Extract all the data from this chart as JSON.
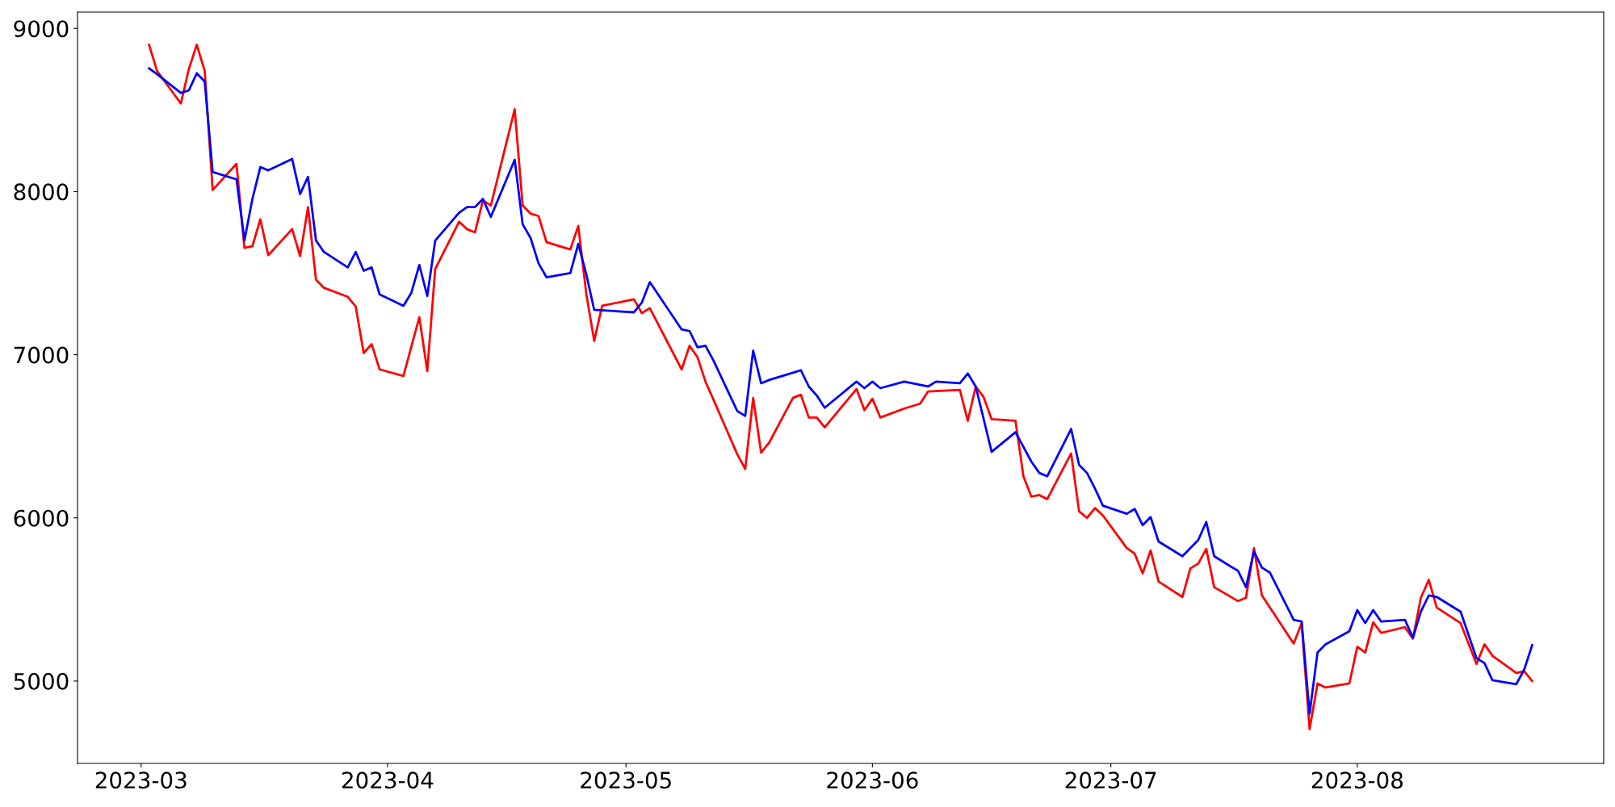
{
  "chart_data": {
    "type": "line",
    "xlim": [
      "2023-02-21",
      "2023-09-01"
    ],
    "ylim": [
      4495,
      9100
    ],
    "xticks": [
      {
        "value": "2023-03-01",
        "label": "2023-03"
      },
      {
        "value": "2023-04-01",
        "label": "2023-04"
      },
      {
        "value": "2023-05-01",
        "label": "2023-05"
      },
      {
        "value": "2023-06-01",
        "label": "2023-06"
      },
      {
        "value": "2023-07-01",
        "label": "2023-07"
      },
      {
        "value": "2023-08-01",
        "label": "2023-08"
      }
    ],
    "yticks": [
      5000,
      6000,
      7000,
      8000,
      9000
    ],
    "grid": false,
    "legend": false,
    "marker": "none",
    "line_style": "solid",
    "series": [
      {
        "color": "#ff0000",
        "x": [
          "2023-03-02",
          "2023-03-03",
          "2023-03-06",
          "2023-03-07",
          "2023-03-08",
          "2023-03-09",
          "2023-03-10",
          "2023-03-13",
          "2023-03-14",
          "2023-03-15",
          "2023-03-16",
          "2023-03-17",
          "2023-03-20",
          "2023-03-21",
          "2023-03-22",
          "2023-03-23",
          "2023-03-24",
          "2023-03-27",
          "2023-03-28",
          "2023-03-29",
          "2023-03-30",
          "2023-03-31",
          "2023-04-03",
          "2023-04-05",
          "2023-04-06",
          "2023-04-07",
          "2023-04-10",
          "2023-04-11",
          "2023-04-12",
          "2023-04-13",
          "2023-04-14",
          "2023-04-17",
          "2023-04-18",
          "2023-04-19",
          "2023-04-20",
          "2023-04-21",
          "2023-04-24",
          "2023-04-25",
          "2023-04-26",
          "2023-04-27",
          "2023-04-28",
          "2023-05-02",
          "2023-05-03",
          "2023-05-04",
          "2023-05-08",
          "2023-05-09",
          "2023-05-10",
          "2023-05-11",
          "2023-05-12",
          "2023-05-15",
          "2023-05-16",
          "2023-05-17",
          "2023-05-18",
          "2023-05-19",
          "2023-05-22",
          "2023-05-23",
          "2023-05-24",
          "2023-05-25",
          "2023-05-26",
          "2023-05-30",
          "2023-05-31",
          "2023-06-01",
          "2023-06-02",
          "2023-06-05",
          "2023-06-07",
          "2023-06-08",
          "2023-06-12",
          "2023-06-13",
          "2023-06-14",
          "2023-06-15",
          "2023-06-16",
          "2023-06-19",
          "2023-06-20",
          "2023-06-21",
          "2023-06-22",
          "2023-06-23",
          "2023-06-26",
          "2023-06-27",
          "2023-06-28",
          "2023-06-29",
          "2023-06-30",
          "2023-07-03",
          "2023-07-04",
          "2023-07-05",
          "2023-07-06",
          "2023-07-07",
          "2023-07-10",
          "2023-07-11",
          "2023-07-12",
          "2023-07-13",
          "2023-07-14",
          "2023-07-17",
          "2023-07-18",
          "2023-07-19",
          "2023-07-20",
          "2023-07-24",
          "2023-07-25",
          "2023-07-26",
          "2023-07-27",
          "2023-07-28",
          "2023-07-31",
          "2023-08-01",
          "2023-08-02",
          "2023-08-03",
          "2023-08-04",
          "2023-08-07",
          "2023-08-08",
          "2023-08-09",
          "2023-08-10",
          "2023-08-11",
          "2023-08-14",
          "2023-08-16",
          "2023-08-17",
          "2023-08-18",
          "2023-08-21",
          "2023-08-22",
          "2023-08-23"
        ],
        "values": [
          8900,
          8740,
          8540,
          8750,
          8900,
          8740,
          8010,
          8170,
          7655,
          7665,
          7830,
          7610,
          7770,
          7605,
          7905,
          7460,
          7410,
          7355,
          7295,
          7010,
          7065,
          6910,
          6870,
          7230,
          6900,
          7525,
          7815,
          7770,
          7750,
          7945,
          7915,
          8505,
          7915,
          7865,
          7850,
          7690,
          7645,
          7790,
          7375,
          7085,
          7300,
          7340,
          7255,
          7285,
          6910,
          7055,
          6985,
          6835,
          6725,
          6390,
          6300,
          6735,
          6400,
          6460,
          6735,
          6755,
          6615,
          6615,
          6555,
          6790,
          6660,
          6730,
          6615,
          6670,
          6700,
          6775,
          6785,
          6595,
          6805,
          6740,
          6605,
          6595,
          6255,
          6130,
          6140,
          6115,
          6395,
          6040,
          6000,
          6060,
          6015,
          5815,
          5780,
          5660,
          5800,
          5610,
          5515,
          5690,
          5720,
          5810,
          5575,
          5490,
          5510,
          5815,
          5525,
          5230,
          5355,
          4705,
          4985,
          4960,
          4985,
          5210,
          5175,
          5360,
          5295,
          5330,
          5260,
          5510,
          5620,
          5450,
          5355,
          5105,
          5225,
          5155,
          5050,
          5060,
          5000
        ]
      },
      {
        "color": "#0000ff",
        "x": [
          "2023-03-02",
          "2023-03-03",
          "2023-03-06",
          "2023-03-07",
          "2023-03-08",
          "2023-03-09",
          "2023-03-10",
          "2023-03-13",
          "2023-03-14",
          "2023-03-15",
          "2023-03-16",
          "2023-03-17",
          "2023-03-20",
          "2023-03-21",
          "2023-03-22",
          "2023-03-23",
          "2023-03-24",
          "2023-03-27",
          "2023-03-28",
          "2023-03-29",
          "2023-03-30",
          "2023-03-31",
          "2023-04-03",
          "2023-04-04",
          "2023-04-05",
          "2023-04-06",
          "2023-04-07",
          "2023-04-10",
          "2023-04-11",
          "2023-04-12",
          "2023-04-13",
          "2023-04-14",
          "2023-04-17",
          "2023-04-18",
          "2023-04-19",
          "2023-04-20",
          "2023-04-21",
          "2023-04-24",
          "2023-04-25",
          "2023-04-26",
          "2023-04-27",
          "2023-05-02",
          "2023-05-03",
          "2023-05-04",
          "2023-05-08",
          "2023-05-09",
          "2023-05-10",
          "2023-05-11",
          "2023-05-12",
          "2023-05-15",
          "2023-05-16",
          "2023-05-17",
          "2023-05-18",
          "2023-05-19",
          "2023-05-22",
          "2023-05-23",
          "2023-05-24",
          "2023-05-25",
          "2023-05-26",
          "2023-05-30",
          "2023-05-31",
          "2023-06-01",
          "2023-06-02",
          "2023-06-05",
          "2023-06-08",
          "2023-06-09",
          "2023-06-12",
          "2023-06-13",
          "2023-06-14",
          "2023-06-16",
          "2023-06-19",
          "2023-06-21",
          "2023-06-22",
          "2023-06-23",
          "2023-06-26",
          "2023-06-27",
          "2023-06-28",
          "2023-06-29",
          "2023-06-30",
          "2023-07-03",
          "2023-07-04",
          "2023-07-05",
          "2023-07-06",
          "2023-07-07",
          "2023-07-10",
          "2023-07-12",
          "2023-07-13",
          "2023-07-14",
          "2023-07-17",
          "2023-07-18",
          "2023-07-19",
          "2023-07-20",
          "2023-07-21",
          "2023-07-24",
          "2023-07-25",
          "2023-07-26",
          "2023-07-27",
          "2023-07-28",
          "2023-07-31",
          "2023-08-01",
          "2023-08-02",
          "2023-08-03",
          "2023-08-04",
          "2023-08-07",
          "2023-08-08",
          "2023-08-09",
          "2023-08-10",
          "2023-08-11",
          "2023-08-14",
          "2023-08-16",
          "2023-08-17",
          "2023-08-18",
          "2023-08-21",
          "2023-08-22",
          "2023-08-23"
        ],
        "values": [
          8755,
          8720,
          8605,
          8620,
          8725,
          8675,
          8120,
          8075,
          7700,
          7955,
          8150,
          8130,
          8200,
          7985,
          8090,
          7700,
          7630,
          7535,
          7630,
          7515,
          7535,
          7370,
          7300,
          7380,
          7550,
          7360,
          7700,
          7870,
          7905,
          7905,
          7955,
          7845,
          8195,
          7800,
          7715,
          7560,
          7475,
          7500,
          7680,
          7495,
          7275,
          7260,
          7320,
          7445,
          7155,
          7145,
          7045,
          7055,
          6965,
          6655,
          6625,
          7025,
          6825,
          6845,
          6890,
          6905,
          6805,
          6750,
          6675,
          6835,
          6795,
          6835,
          6795,
          6835,
          6805,
          6835,
          6825,
          6885,
          6805,
          6405,
          6525,
          6345,
          6275,
          6255,
          6545,
          6325,
          6275,
          6180,
          6075,
          6025,
          6055,
          5955,
          6005,
          5855,
          5765,
          5865,
          5975,
          5765,
          5675,
          5575,
          5795,
          5695,
          5665,
          5375,
          5365,
          4800,
          5175,
          5225,
          5305,
          5435,
          5355,
          5435,
          5365,
          5375,
          5265,
          5425,
          5525,
          5515,
          5425,
          5140,
          5110,
          5005,
          4980,
          5070,
          5220
        ]
      }
    ]
  }
}
